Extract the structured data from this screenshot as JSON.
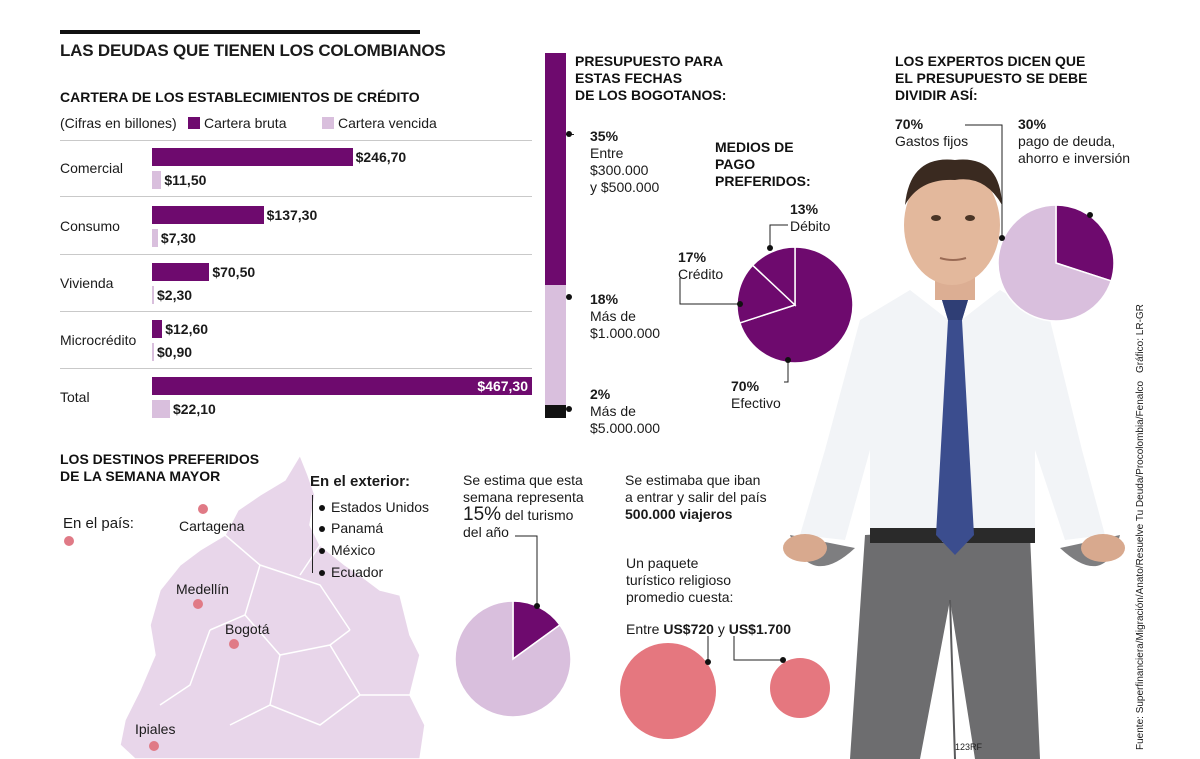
{
  "title": "LAS DEUDAS QUE TIENEN LOS COLOMBIANOS",
  "colors": {
    "purple": "#6e0a6e",
    "lilac": "#d9bfdd",
    "black": "#111111",
    "pink": "#e5777f",
    "map": "#e8d6ea"
  },
  "cartera": {
    "title": "CARTERA DE LOS ESTABLECIMIENTOS DE CRÉDITO",
    "unit": "(Cifras en billones)",
    "legend": {
      "bruta": "Cartera bruta",
      "vencida": "Cartera vencida"
    }
  },
  "presupuesto": {
    "title": [
      "PRESUPUESTO PARA",
      "ESTAS FECHAS",
      "DE LOS BOGOTANOS:"
    ],
    "items": [
      {
        "pct": "35%",
        "lines": [
          "Entre",
          "$300.000",
          "y $500.000"
        ]
      },
      {
        "pct": "18%",
        "lines": [
          "Más de",
          "$1.000.000"
        ]
      },
      {
        "pct": "2%",
        "lines": [
          "Más de",
          "$5.000.000"
        ]
      }
    ]
  },
  "medios": {
    "title": [
      "MEDIOS DE",
      "PAGO",
      "PREFERIDOS:"
    ],
    "debito": {
      "pct": "13%",
      "label": "Débito"
    },
    "credito": {
      "pct": "17%",
      "label": "Crédito"
    },
    "efectivo": {
      "pct": "70%",
      "label": "Efectivo"
    }
  },
  "expertos": {
    "title": [
      "LOS EXPERTOS DICEN QUE",
      "EL PRESUPUESTO SE DEBE",
      "DIVIDIR ASÍ:"
    ],
    "a": {
      "pct": "70%",
      "lines": [
        "Gastos fijos"
      ]
    },
    "b": {
      "pct": "30%",
      "lines": [
        "pago de deuda,",
        "ahorro e inversión"
      ]
    }
  },
  "destinos": {
    "title": [
      "LOS DESTINOS PREFERIDOS",
      "DE LA SEMANA MAYOR"
    ],
    "pais_label": "En el país:",
    "ciudades": [
      "Cartagena",
      "Medellín",
      "Bogotá",
      "Ipiales"
    ],
    "exterior_label": "En el exterior:",
    "exterior": [
      "Estados Unidos",
      "Panamá",
      "México",
      "Ecuador"
    ]
  },
  "turismo": {
    "line1": "Se estima que esta",
    "line2": "semana representa",
    "big": "15%",
    "rest": " del turismo",
    "line4": "del año"
  },
  "viajeros": {
    "line1": "Se estimaba que iban",
    "line2": "a entrar y salir del país",
    "bold": "500.000 viajeros"
  },
  "paquete": {
    "lines": [
      "Un paquete",
      "turístico religioso",
      "promedio cuesta:"
    ],
    "entre": "Entre",
    "min": "US$720",
    "y": "y",
    "max": "US$1.700"
  },
  "fuente": "Fuente: Superfinanciera/Migración/Anato/Resuelve Tu Deuda/Procolombia/Fenalco",
  "grafico": "Gráfico: LR-GR",
  "credit": "123RF",
  "chart_data": [
    {
      "type": "bar",
      "title": "CARTERA DE LOS ESTABLECIMIENTOS DE CRÉDITO",
      "categories": [
        "Comercial",
        "Consumo",
        "Vivienda",
        "Microcrédito",
        "Total"
      ],
      "series": [
        {
          "name": "Cartera bruta",
          "values": [
            246.7,
            137.3,
            70.5,
            12.6,
            467.3
          ],
          "labels": [
            "$246,70",
            "$137,30",
            "$70,50",
            "$12,60",
            "$467,30"
          ]
        },
        {
          "name": "Cartera vencida",
          "values": [
            11.5,
            7.3,
            2.3,
            0.9,
            22.1
          ],
          "labels": [
            "$11,50",
            "$7,30",
            "$2,30",
            "$0,90",
            "$22,10"
          ]
        }
      ]
    },
    {
      "type": "bar",
      "title": "PRESUPUESTO PARA ESTAS FECHAS DE LOS BOGOTANOS:",
      "categories": [
        "Entre $300.000 y $500.000",
        "Más de $1.000.000",
        "Más de $5.000.000"
      ],
      "values": [
        35,
        18,
        2
      ]
    },
    {
      "type": "pie",
      "title": "MEDIOS DE PAGO PREFERIDOS:",
      "categories": [
        "Efectivo",
        "Crédito",
        "Débito"
      ],
      "values": [
        70,
        17,
        13
      ]
    },
    {
      "type": "pie",
      "title": "LOS EXPERTOS DICEN QUE EL PRESUPUESTO SE DEBE DIVIDIR ASÍ:",
      "categories": [
        "Gastos fijos",
        "pago de deuda, ahorro e inversión"
      ],
      "values": [
        70,
        30
      ]
    },
    {
      "type": "pie",
      "categories": [
        "Semana Mayor"
      ],
      "values": [
        15
      ]
    }
  ]
}
